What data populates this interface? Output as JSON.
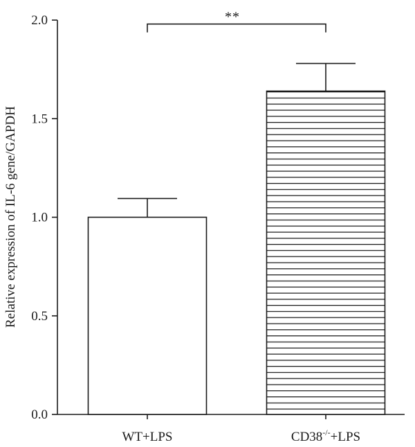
{
  "chart_data": {
    "type": "bar",
    "title": "",
    "xlabel": "",
    "ylabel": "Relative expression of IL-6 gene/GAPDH",
    "ylim": [
      0,
      2.0
    ],
    "yticks": [
      "0.0",
      "0.5",
      "1.0",
      "1.5",
      "2.0"
    ],
    "categories": [
      {
        "base": "WT+LPS",
        "sup": "",
        "tail": ""
      },
      {
        "base": "CD38",
        "sup": "-/-",
        "tail": "+LPS"
      }
    ],
    "values": [
      1.0,
      1.64
    ],
    "errors": [
      0.095,
      0.14
    ],
    "fills": [
      "white",
      "horizontal-stripes"
    ],
    "significance": {
      "label": "**",
      "between": [
        0,
        1
      ],
      "y": 1.98
    },
    "grid": false,
    "legend": "none"
  }
}
